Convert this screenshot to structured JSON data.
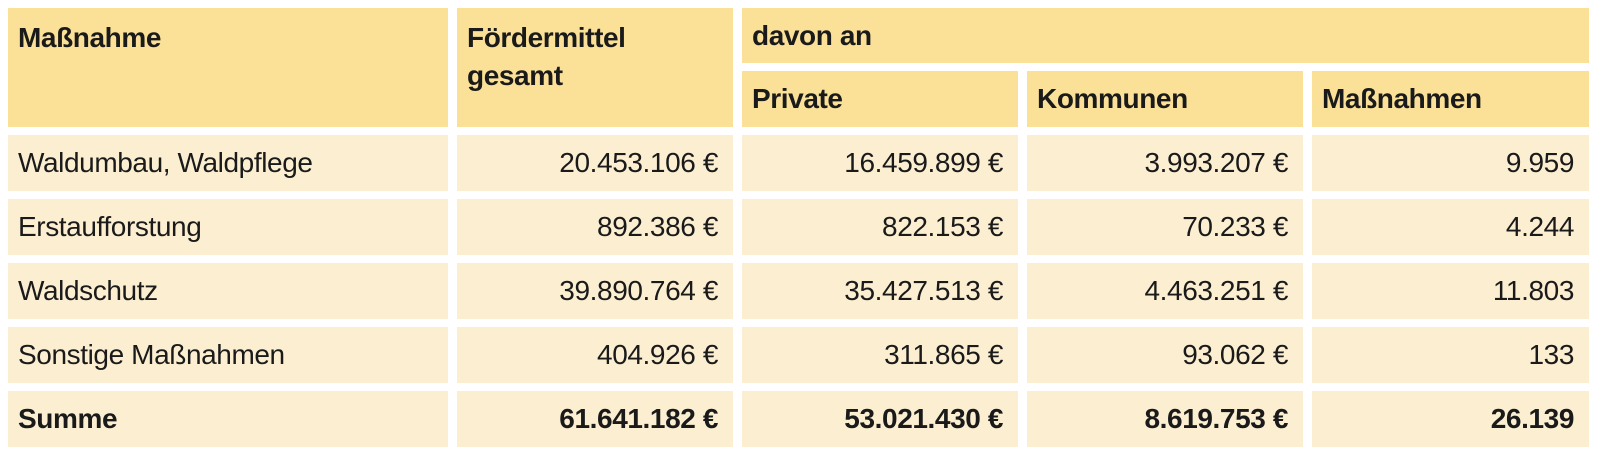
{
  "table": {
    "header": {
      "measure_label": "Maßnahme",
      "total_label": "Fördermittel gesamt",
      "davon_label": "davon an",
      "sub_private": "Private",
      "sub_kommunen": "Kommunen",
      "sub_massnahmen": "Maßnahmen"
    },
    "rows": [
      {
        "label": "Waldumbau, Waldpflege",
        "total": "20.453.106 €",
        "private": "16.459.899 €",
        "kommunen": "3.993.207 €",
        "count": "9.959",
        "bold": false
      },
      {
        "label": "Erstaufforstung",
        "total": "892.386 €",
        "private": "822.153 €",
        "kommunen": "70.233 €",
        "count": "4.244",
        "bold": false
      },
      {
        "label": "Waldschutz",
        "total": "39.890.764 €",
        "private": "35.427.513 €",
        "kommunen": "4.463.251 €",
        "count": "11.803",
        "bold": false
      },
      {
        "label": "Sonstige Maßnahmen",
        "total": "404.926 €",
        "private": "311.865 €",
        "kommunen": "93.062 €",
        "count": "133",
        "bold": false
      },
      {
        "label": "Summe",
        "total": "61.641.182 €",
        "private": "53.021.430 €",
        "kommunen": "8.619.753 €",
        "count": "26.139",
        "bold": true
      }
    ],
    "colors": {
      "header_bg": "#FBE197",
      "row_bg": "#FCEFD1",
      "text": "#1A1A1A",
      "page_bg": "#FFFFFF"
    }
  }
}
